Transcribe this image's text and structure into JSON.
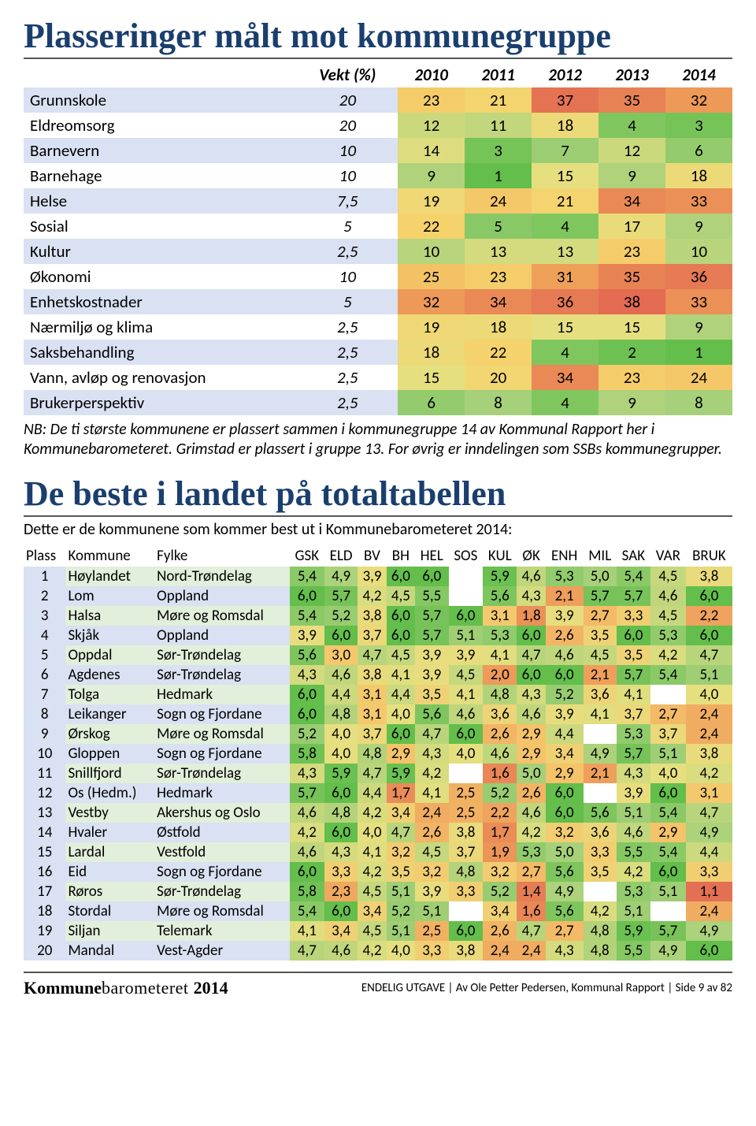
{
  "colors": {
    "heatmap": {
      "min_value": 1,
      "max_value": 38,
      "stops": [
        {
          "v": 1,
          "c": "#63be4b"
        },
        {
          "v": 8,
          "c": "#a6d07a"
        },
        {
          "v": 15,
          "c": "#e6df80"
        },
        {
          "v": 22,
          "c": "#f5d26c"
        },
        {
          "v": 30,
          "c": "#f0a85a"
        },
        {
          "v": 38,
          "c": "#e26b52"
        }
      ]
    },
    "score_heatmap": {
      "min_value": 1.0,
      "max_value": 6.0,
      "stops": [
        {
          "v": 6.0,
          "c": "#63be4b"
        },
        {
          "v": 5.0,
          "c": "#a6d07a"
        },
        {
          "v": 4.0,
          "c": "#e6df80"
        },
        {
          "v": 3.0,
          "c": "#f5c76c"
        },
        {
          "v": 2.0,
          "c": "#ed9a5a"
        },
        {
          "v": 1.0,
          "c": "#e26b52"
        }
      ]
    },
    "row_alt_even": "#ffffff",
    "row_alt_odd": "#e2efda",
    "row_alt2_odd": "#d9e1f2",
    "plass_bg": "#d9e1f2"
  },
  "section1": {
    "title": "Plasseringer målt mot kommunegruppe",
    "columns": [
      "Vekt (%)",
      "2010",
      "2011",
      "2012",
      "2013",
      "2014"
    ],
    "rows": [
      {
        "label": "Grunnskole",
        "weight": "20",
        "vals": [
          23,
          21,
          37,
          35,
          32
        ]
      },
      {
        "label": "Eldreomsorg",
        "weight": "20",
        "vals": [
          12,
          11,
          18,
          4,
          3
        ]
      },
      {
        "label": "Barnevern",
        "weight": "10",
        "vals": [
          14,
          3,
          7,
          12,
          6
        ]
      },
      {
        "label": "Barnehage",
        "weight": "10",
        "vals": [
          9,
          1,
          15,
          9,
          18
        ]
      },
      {
        "label": "Helse",
        "weight": "7,5",
        "vals": [
          19,
          24,
          21,
          34,
          33
        ]
      },
      {
        "label": "Sosial",
        "weight": "5",
        "vals": [
          22,
          5,
          4,
          17,
          9
        ]
      },
      {
        "label": "Kultur",
        "weight": "2,5",
        "vals": [
          10,
          13,
          13,
          23,
          10
        ]
      },
      {
        "label": "Økonomi",
        "weight": "10",
        "vals": [
          25,
          23,
          31,
          35,
          36
        ]
      },
      {
        "label": "Enhetskostnader",
        "weight": "5",
        "vals": [
          32,
          34,
          36,
          38,
          33
        ]
      },
      {
        "label": "Nærmiljø og klima",
        "weight": "2,5",
        "vals": [
          19,
          18,
          15,
          15,
          9
        ]
      },
      {
        "label": "Saksbehandling",
        "weight": "2,5",
        "vals": [
          18,
          22,
          4,
          2,
          1
        ]
      },
      {
        "label": "Vann, avløp og renovasjon",
        "weight": "2,5",
        "vals": [
          15,
          20,
          34,
          23,
          24
        ]
      },
      {
        "label": "Brukerperspektiv",
        "weight": "2,5",
        "vals": [
          6,
          8,
          4,
          9,
          8
        ]
      }
    ],
    "note": "NB: De ti største kommunene er plassert sammen i kommunegruppe 14 av Kommunal Rapport her i Kommunebarometeret. Grimstad er plassert i gruppe 13. For øvrig er inndelingen som SSBs kommunegrupper."
  },
  "section2": {
    "title": "De beste i landet på totaltabellen",
    "intro": "Dette er de kommunene som kommer best ut i Kommunebarometeret 2014:",
    "columns": [
      "Plass",
      "Kommune",
      "Fylke",
      "GSK",
      "ELD",
      "BV",
      "BH",
      "HEL",
      "SOS",
      "KUL",
      "ØK",
      "ENH",
      "MIL",
      "SAK",
      "VAR",
      "BRUK"
    ],
    "rows": [
      {
        "plass": 1,
        "kommune": "Høylandet",
        "fylke": "Nord-Trøndelag",
        "scores": [
          "5,4",
          "4,9",
          "3,9",
          "6,0",
          "6,0",
          "",
          "5,9",
          "4,6",
          "5,3",
          "5,0",
          "5,4",
          "4,5",
          "3,8"
        ]
      },
      {
        "plass": 2,
        "kommune": "Lom",
        "fylke": "Oppland",
        "scores": [
          "6,0",
          "5,7",
          "4,2",
          "4,5",
          "5,5",
          "",
          "5,6",
          "4,3",
          "2,1",
          "5,7",
          "5,7",
          "4,6",
          "6,0"
        ]
      },
      {
        "plass": 3,
        "kommune": "Halsa",
        "fylke": "Møre og Romsdal",
        "scores": [
          "5,4",
          "5,2",
          "3,8",
          "6,0",
          "5,7",
          "6,0",
          "3,1",
          "1,8",
          "3,9",
          "2,7",
          "3,3",
          "4,5",
          "2,2"
        ]
      },
      {
        "plass": 4,
        "kommune": "Skjåk",
        "fylke": "Oppland",
        "scores": [
          "3,9",
          "6,0",
          "3,7",
          "6,0",
          "5,7",
          "5,1",
          "5,3",
          "6,0",
          "2,6",
          "3,5",
          "6,0",
          "5,3",
          "6,0"
        ]
      },
      {
        "plass": 5,
        "kommune": "Oppdal",
        "fylke": "Sør-Trøndelag",
        "scores": [
          "5,6",
          "3,0",
          "4,7",
          "4,5",
          "3,9",
          "3,9",
          "4,1",
          "4,7",
          "4,6",
          "4,5",
          "3,5",
          "4,2",
          "4,7"
        ]
      },
      {
        "plass": 6,
        "kommune": "Agdenes",
        "fylke": "Sør-Trøndelag",
        "scores": [
          "4,3",
          "4,6",
          "3,8",
          "4,1",
          "3,9",
          "4,5",
          "2,0",
          "6,0",
          "6,0",
          "2,1",
          "5,7",
          "5,4",
          "5,1"
        ]
      },
      {
        "plass": 7,
        "kommune": "Tolga",
        "fylke": "Hedmark",
        "scores": [
          "6,0",
          "4,4",
          "3,1",
          "4,4",
          "3,5",
          "4,1",
          "4,8",
          "4,3",
          "5,2",
          "3,6",
          "4,1",
          "",
          "4,0"
        ]
      },
      {
        "plass": 8,
        "kommune": "Leikanger",
        "fylke": "Sogn og Fjordane",
        "scores": [
          "6,0",
          "4,8",
          "3,1",
          "4,0",
          "5,6",
          "4,6",
          "3,6",
          "4,6",
          "3,9",
          "4,1",
          "3,7",
          "2,7",
          "2,4"
        ]
      },
      {
        "plass": 9,
        "kommune": "Ørskog",
        "fylke": "Møre og Romsdal",
        "scores": [
          "5,2",
          "4,0",
          "3,7",
          "6,0",
          "4,7",
          "6,0",
          "2,6",
          "2,9",
          "4,4",
          "",
          "5,3",
          "3,7",
          "2,4"
        ]
      },
      {
        "plass": 10,
        "kommune": "Gloppen",
        "fylke": "Sogn og Fjordane",
        "scores": [
          "5,8",
          "4,0",
          "4,8",
          "2,9",
          "4,3",
          "4,0",
          "4,6",
          "2,9",
          "3,4",
          "4,9",
          "5,7",
          "5,1",
          "3,8"
        ]
      },
      {
        "plass": 11,
        "kommune": "Snillfjord",
        "fylke": "Sør-Trøndelag",
        "scores": [
          "4,3",
          "5,9",
          "4,7",
          "5,9",
          "4,2",
          "",
          "1,6",
          "5,0",
          "2,9",
          "2,1",
          "4,3",
          "4,0",
          "4,2"
        ]
      },
      {
        "plass": 12,
        "kommune": "Os (Hedm.)",
        "fylke": "Hedmark",
        "scores": [
          "5,7",
          "6,0",
          "4,4",
          "1,7",
          "4,1",
          "2,5",
          "5,2",
          "2,6",
          "6,0",
          "",
          "3,9",
          "6,0",
          "3,1"
        ]
      },
      {
        "plass": 13,
        "kommune": "Vestby",
        "fylke": "Akershus og Oslo",
        "scores": [
          "4,6",
          "4,8",
          "4,2",
          "3,4",
          "2,4",
          "2,5",
          "2,2",
          "4,6",
          "6,0",
          "5,6",
          "5,1",
          "5,4",
          "4,7"
        ]
      },
      {
        "plass": 14,
        "kommune": "Hvaler",
        "fylke": "Østfold",
        "scores": [
          "4,2",
          "6,0",
          "4,0",
          "4,7",
          "2,6",
          "3,8",
          "1,7",
          "4,2",
          "3,2",
          "3,6",
          "4,6",
          "2,9",
          "4,9"
        ]
      },
      {
        "plass": 15,
        "kommune": "Lardal",
        "fylke": "Vestfold",
        "scores": [
          "4,6",
          "4,3",
          "4,1",
          "3,2",
          "4,5",
          "3,7",
          "1,9",
          "5,3",
          "5,0",
          "3,3",
          "5,5",
          "5,4",
          "4,4"
        ]
      },
      {
        "plass": 16,
        "kommune": "Eid",
        "fylke": "Sogn og Fjordane",
        "scores": [
          "6,0",
          "3,3",
          "4,2",
          "3,5",
          "3,2",
          "4,8",
          "3,2",
          "2,7",
          "5,6",
          "3,5",
          "4,2",
          "6,0",
          "3,3"
        ]
      },
      {
        "plass": 17,
        "kommune": "Røros",
        "fylke": "Sør-Trøndelag",
        "scores": [
          "5,8",
          "2,3",
          "4,5",
          "5,1",
          "3,9",
          "3,3",
          "5,2",
          "1,4",
          "4,9",
          "",
          "5,3",
          "5,1",
          "1,1"
        ]
      },
      {
        "plass": 18,
        "kommune": "Stordal",
        "fylke": "Møre og Romsdal",
        "scores": [
          "5,4",
          "6,0",
          "3,4",
          "5,2",
          "5,1",
          "",
          "3,4",
          "1,6",
          "5,6",
          "4,2",
          "5,1",
          "",
          "2,4"
        ]
      },
      {
        "plass": 19,
        "kommune": "Siljan",
        "fylke": "Telemark",
        "scores": [
          "4,1",
          "3,4",
          "4,5",
          "5,1",
          "2,5",
          "6,0",
          "2,6",
          "4,7",
          "2,7",
          "4,8",
          "5,9",
          "5,7",
          "4,9"
        ]
      },
      {
        "plass": 20,
        "kommune": "Mandal",
        "fylke": "Vest-Agder",
        "scores": [
          "4,7",
          "4,6",
          "4,2",
          "4,0",
          "3,3",
          "3,8",
          "2,4",
          "2,4",
          "4,3",
          "4,8",
          "5,5",
          "4,9",
          "6,0"
        ]
      }
    ]
  },
  "footer": {
    "brand1": "Kommune",
    "brand2": "barometeret ",
    "year": "2014",
    "text": "ENDELIG UTGAVE | Av Ole Petter Pedersen, Kommunal Rapport | Side 9 av 82"
  }
}
